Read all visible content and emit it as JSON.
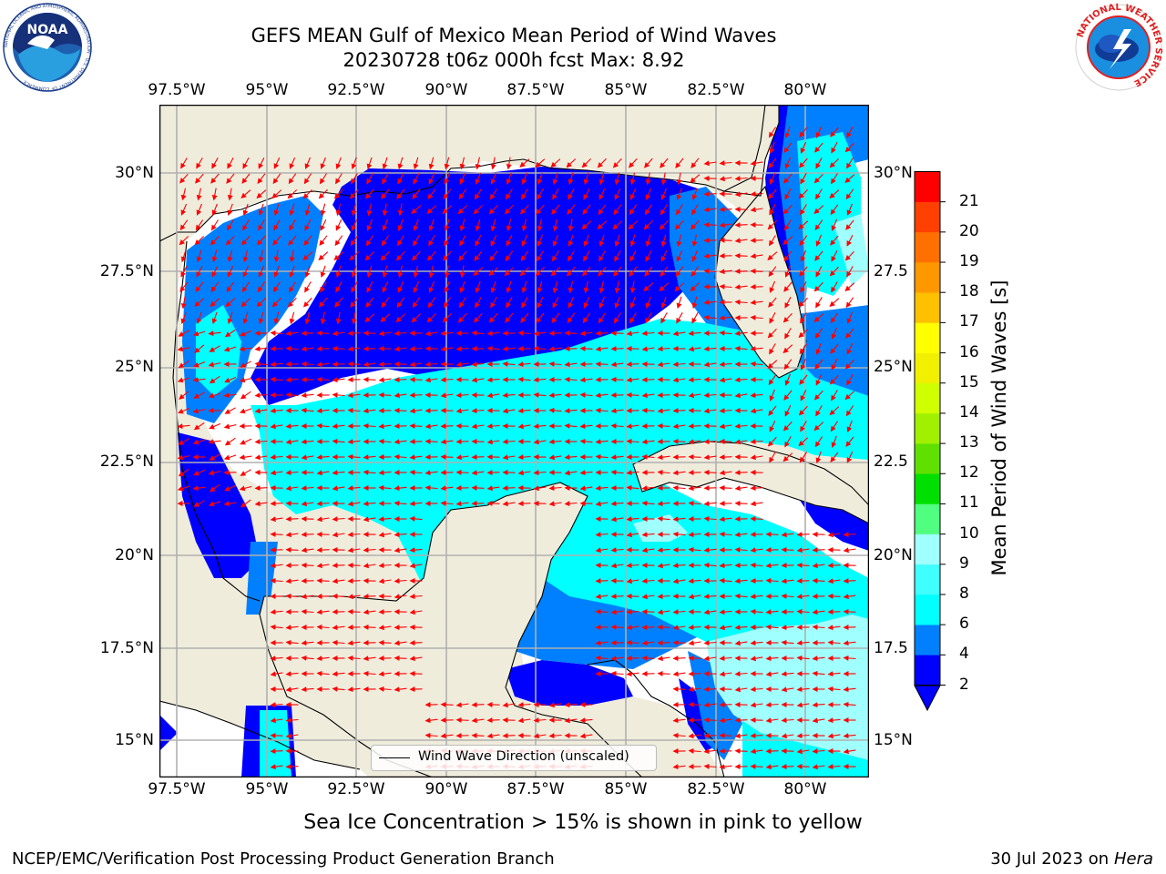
{
  "title": {
    "line1": "GEFS MEAN Gulf of Mexico Mean Period of Wind Waves",
    "line2": "20230728 t06z 000h fcst   Max: 8.92"
  },
  "map": {
    "lon_labels": [
      "97.5°W",
      "95°W",
      "92.5°W",
      "90°W",
      "87.5°W",
      "85°W",
      "82.5°W",
      "80°W"
    ],
    "lat_labels_left": [
      "30°N",
      "27.5°N",
      "25°N",
      "22.5°N",
      "20°N",
      "17.5°N",
      "15°N"
    ],
    "lat_labels_right": [
      "30°N",
      "27.5",
      "25°N",
      "22.5",
      "20°N",
      "17.5",
      "15°N"
    ],
    "legend_label": "Wind Wave Direction (unscaled)",
    "land_color": "#efecdc",
    "vector_color": "#ff0000"
  },
  "colorbar": {
    "title": "Mean Period of Wind Waves [s]",
    "ticks": [
      "2",
      "4",
      "6",
      "8",
      "9",
      "10",
      "11",
      "12",
      "13",
      "14",
      "15",
      "16",
      "17",
      "18",
      "19",
      "20",
      "21"
    ],
    "colors": [
      "#0000ff",
      "#0080ff",
      "#00ffff",
      "#40ffff",
      "#a0ffff",
      "#50ff80",
      "#00e000",
      "#60e000",
      "#a0f000",
      "#d0ff00",
      "#f0f000",
      "#ffff00",
      "#ffc000",
      "#ff9800",
      "#ff7000",
      "#ff4000",
      "#ff0000"
    ],
    "below_color": "#0000ff"
  },
  "subtitle": "Sea Ice Concentration > 15% is shown in pink to yellow",
  "footer": {
    "left": "NCEP/EMC/Verification Post Processing Product Generation Branch",
    "right_prefix": "30 Jul 2023 on ",
    "right_host": "Hera"
  },
  "logos": {
    "noaa": "NOAA",
    "noaa_ring": "NATIONAL OCEANIC AND ATMOSPHERIC ADMINISTRATION · U.S. DEPARTMENT OF COMMERCE",
    "nws_ring": "NATIONAL WEATHER SERVICE"
  }
}
